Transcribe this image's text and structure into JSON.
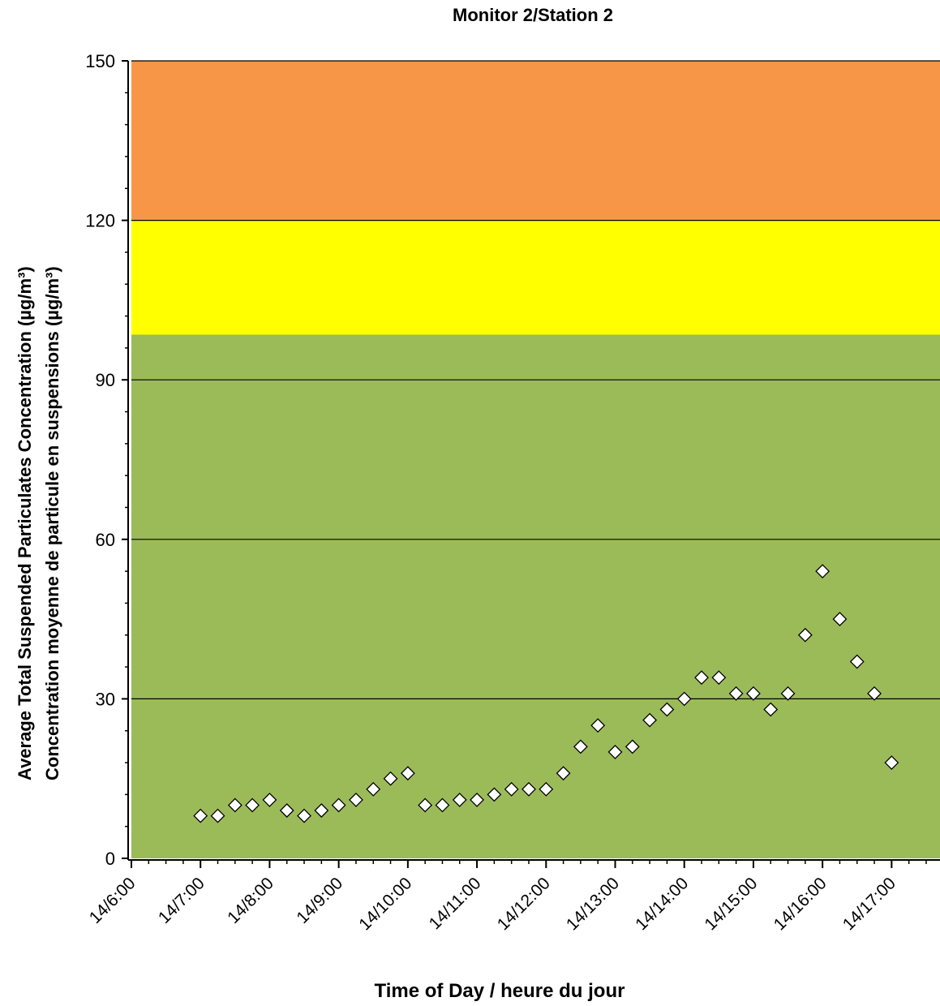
{
  "chart_data": {
    "type": "scatter",
    "title": "Monitor 2/Station 2",
    "xlabel": "Time of Day / heure du jour",
    "ylabel_lines": [
      "Average Total Suspended Particulates Concentration (µg/m³)",
      "Concentration moyenne de particule en suspensions (µg/m³)"
    ],
    "ylim": [
      0,
      150
    ],
    "yticks": [
      0,
      30,
      60,
      90,
      120,
      150
    ],
    "xlim": [
      6,
      17.7
    ],
    "xticks": [
      {
        "x": 6,
        "label": "14/6:00"
      },
      {
        "x": 7,
        "label": "14/7:00"
      },
      {
        "x": 8,
        "label": "14/8:00"
      },
      {
        "x": 9,
        "label": "14/9:00"
      },
      {
        "x": 10,
        "label": "14/10:00"
      },
      {
        "x": 11,
        "label": "14/11:00"
      },
      {
        "x": 12,
        "label": "14/12:00"
      },
      {
        "x": 13,
        "label": "14/13:00"
      },
      {
        "x": 14,
        "label": "14/14:00"
      },
      {
        "x": 15,
        "label": "14/15:00"
      },
      {
        "x": 16,
        "label": "14/16:00"
      },
      {
        "x": 17,
        "label": "14/17:00"
      }
    ],
    "bands": [
      {
        "from": 0,
        "to": 98.5,
        "color": "#9bbb59"
      },
      {
        "from": 98.5,
        "to": 120,
        "color": "#ffff00"
      },
      {
        "from": 120,
        "to": 150,
        "color": "#f79646"
      }
    ],
    "grid": true,
    "marker": "diamond",
    "x": [
      7,
      7.25,
      7.5,
      7.75,
      8,
      8.25,
      8.5,
      8.75,
      9,
      9.25,
      9.5,
      9.75,
      10,
      10.25,
      10.5,
      10.75,
      11,
      11.25,
      11.5,
      11.75,
      12,
      12.25,
      12.5,
      12.75,
      13,
      13.25,
      13.5,
      13.75,
      14,
      14.25,
      14.5,
      14.75,
      15,
      15.25,
      15.5,
      15.75,
      16,
      16.25,
      16.5,
      16.75,
      17
    ],
    "y": [
      8,
      8,
      10,
      10,
      11,
      9,
      8,
      9,
      10,
      11,
      13,
      15,
      16,
      10,
      10,
      11,
      11,
      12,
      13,
      13,
      13,
      16,
      21,
      25,
      20,
      21,
      26,
      28,
      30,
      34,
      34,
      31,
      31,
      28,
      31,
      42,
      54,
      45,
      37,
      31,
      18
    ]
  }
}
